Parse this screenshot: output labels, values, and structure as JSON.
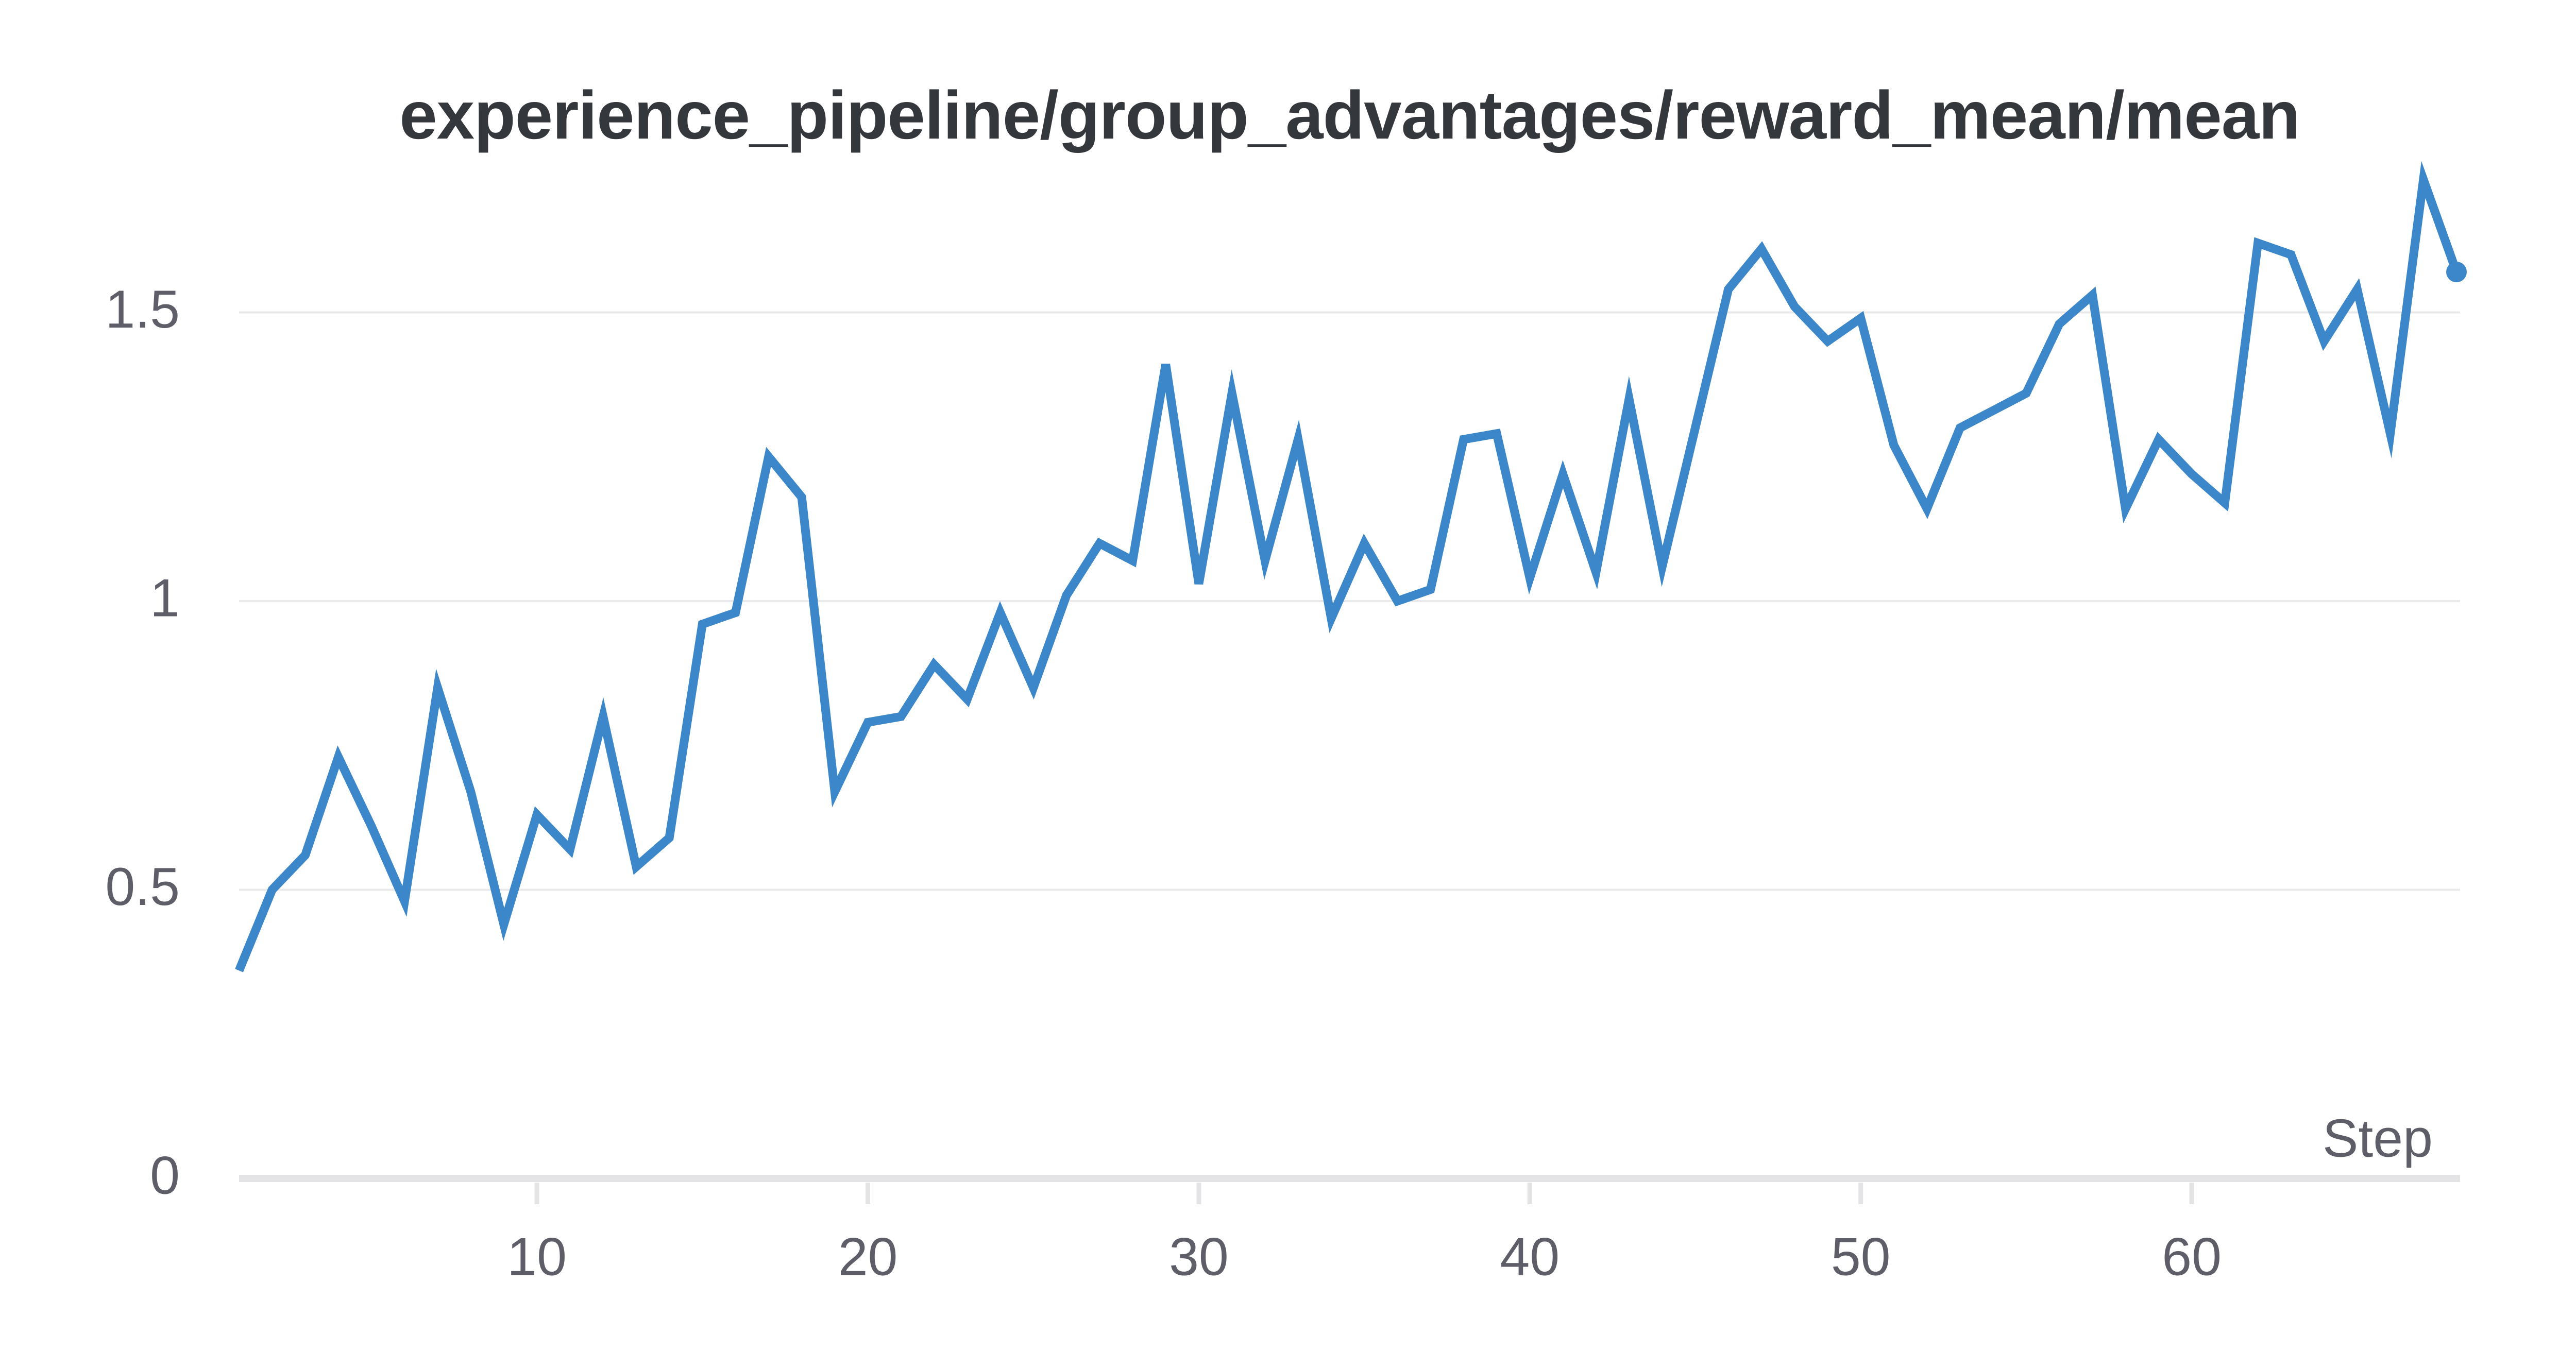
{
  "chart_data": {
    "type": "line",
    "title": "experience_pipeline/group_advantages/reward_mean/mean",
    "xlabel": "Step",
    "series_name": "experience_pipeline/group_advantages/reward_mean/mean",
    "x_start": 1,
    "x_end": 68,
    "x_ticks": [
      10,
      20,
      30,
      40,
      50,
      60
    ],
    "y_ticks": [
      0,
      0.5,
      1,
      1.5
    ],
    "y_tick_labels": [
      "0",
      "0.5",
      "1",
      "1.5"
    ],
    "ylim": [
      0,
      1.8
    ],
    "grid": "horizontal-only",
    "legend_position": "none",
    "values": [
      0.36,
      0.5,
      0.56,
      0.73,
      0.61,
      0.48,
      0.85,
      0.67,
      0.44,
      0.63,
      0.57,
      0.8,
      0.54,
      0.59,
      0.96,
      0.98,
      1.25,
      1.18,
      0.67,
      0.79,
      0.8,
      0.89,
      0.83,
      0.98,
      0.85,
      1.01,
      1.1,
      1.07,
      1.41,
      1.03,
      1.36,
      1.07,
      1.28,
      0.97,
      1.1,
      1.0,
      1.02,
      1.28,
      1.29,
      1.04,
      1.22,
      1.05,
      1.35,
      1.06,
      1.3,
      1.54,
      1.61,
      1.51,
      1.45,
      1.49,
      1.27,
      1.16,
      1.3,
      1.33,
      1.36,
      1.48,
      1.53,
      1.16,
      1.28,
      1.22,
      1.17,
      1.62,
      1.6,
      1.45,
      1.54,
      1.29,
      1.73,
      1.57
    ],
    "colors": {
      "line": "#3b87c9",
      "end_dot": "#3b87c9",
      "gridline": "#e9e9eb",
      "zero_axis": "#e4e4e6",
      "tick_mark": "#e4e4e6",
      "tick_label": "#5d5e67",
      "axis_title": "#5d5e67",
      "title": "#34373c",
      "background": "#ffffff"
    }
  }
}
